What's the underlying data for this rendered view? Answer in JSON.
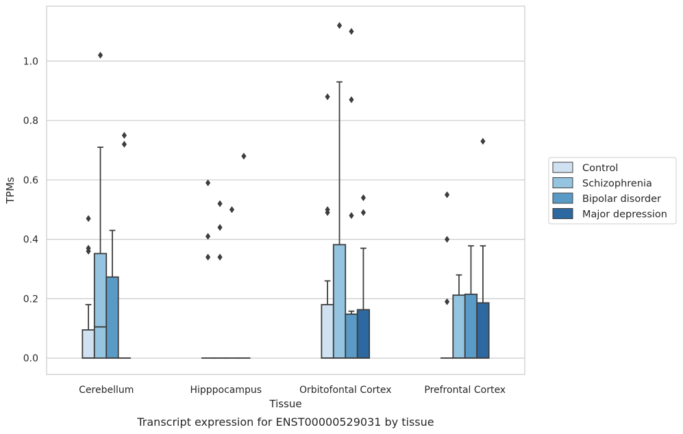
{
  "chart_data": {
    "type": "box",
    "caption": "Transcript expression for ENST00000529031 by tissue",
    "xlabel": "Tissue",
    "ylabel": "TPMs",
    "ylim": [
      -0.055,
      1.185
    ],
    "yticks": [
      0.0,
      0.2,
      0.4,
      0.6,
      0.8,
      1.0
    ],
    "ytick_labels": [
      "0.0",
      "0.2",
      "0.4",
      "0.6",
      "0.8",
      "1.0"
    ],
    "grid": "horizontal",
    "legend_position": "right",
    "categories": [
      "Cerebellum",
      "Hipppocampus",
      "Orbitofontal Cortex",
      "Prefrontal Cortex"
    ],
    "series": [
      {
        "name": "Control",
        "color": "#d0e1f2",
        "boxes": [
          {
            "q1": 0.0,
            "median": 0.0,
            "q3": 0.095,
            "whisker_low": 0.0,
            "whisker_high": 0.18,
            "outliers": [
              0.36,
              0.37,
              0.47
            ]
          },
          {
            "q1": 0.0,
            "median": 0.0,
            "q3": 0.0,
            "whisker_low": 0.0,
            "whisker_high": 0.0,
            "outliers": [
              0.34,
              0.41,
              0.59
            ]
          },
          {
            "q1": 0.0,
            "median": 0.0,
            "q3": 0.18,
            "whisker_low": 0.0,
            "whisker_high": 0.26,
            "outliers": [
              0.49,
              0.5,
              0.88
            ]
          },
          {
            "q1": 0.0,
            "median": 0.0,
            "q3": 0.0,
            "whisker_low": 0.0,
            "whisker_high": 0.0,
            "outliers": [
              0.19,
              0.4,
              0.55
            ]
          }
        ]
      },
      {
        "name": "Schizophrenia",
        "color": "#94c4df",
        "boxes": [
          {
            "q1": 0.0,
            "median": 0.105,
            "q3": 0.352,
            "whisker_low": 0.0,
            "whisker_high": 0.71,
            "outliers": [
              1.02
            ]
          },
          {
            "q1": 0.0,
            "median": 0.0,
            "q3": 0.0,
            "whisker_low": 0.0,
            "whisker_high": 0.0,
            "outliers": [
              0.34,
              0.44,
              0.52
            ]
          },
          {
            "q1": 0.0,
            "median": 0.0,
            "q3": 0.382,
            "whisker_low": 0.0,
            "whisker_high": 0.93,
            "outliers": [
              1.12
            ]
          },
          {
            "q1": 0.0,
            "median": 0.0,
            "q3": 0.212,
            "whisker_low": 0.0,
            "whisker_high": 0.28,
            "outliers": []
          }
        ]
      },
      {
        "name": "Bipolar disorder",
        "color": "#5a9ac6",
        "boxes": [
          {
            "q1": 0.0,
            "median": 0.0,
            "q3": 0.273,
            "whisker_low": 0.0,
            "whisker_high": 0.43,
            "outliers": []
          },
          {
            "q1": 0.0,
            "median": 0.0,
            "q3": 0.0,
            "whisker_low": 0.0,
            "whisker_high": 0.0,
            "outliers": [
              0.5
            ]
          },
          {
            "q1": 0.0,
            "median": 0.0,
            "q3": 0.148,
            "whisker_low": 0.0,
            "whisker_high": 0.158,
            "outliers": [
              0.48,
              0.87,
              1.1
            ]
          },
          {
            "q1": 0.0,
            "median": 0.0,
            "q3": 0.215,
            "whisker_low": 0.0,
            "whisker_high": 0.378,
            "outliers": []
          }
        ]
      },
      {
        "name": "Major depression",
        "color": "#2d68a0",
        "boxes": [
          {
            "q1": 0.0,
            "median": 0.0,
            "q3": 0.0,
            "whisker_low": 0.0,
            "whisker_high": 0.0,
            "outliers": [
              0.72,
              0.75
            ]
          },
          {
            "q1": 0.0,
            "median": 0.0,
            "q3": 0.0,
            "whisker_low": 0.0,
            "whisker_high": 0.0,
            "outliers": [
              0.68
            ]
          },
          {
            "q1": 0.0,
            "median": 0.0,
            "q3": 0.163,
            "whisker_low": 0.0,
            "whisker_high": 0.37,
            "outliers": [
              0.49,
              0.54
            ]
          },
          {
            "q1": 0.0,
            "median": 0.0,
            "q3": 0.186,
            "whisker_low": 0.0,
            "whisker_high": 0.378,
            "outliers": [
              0.73
            ]
          }
        ]
      }
    ]
  }
}
